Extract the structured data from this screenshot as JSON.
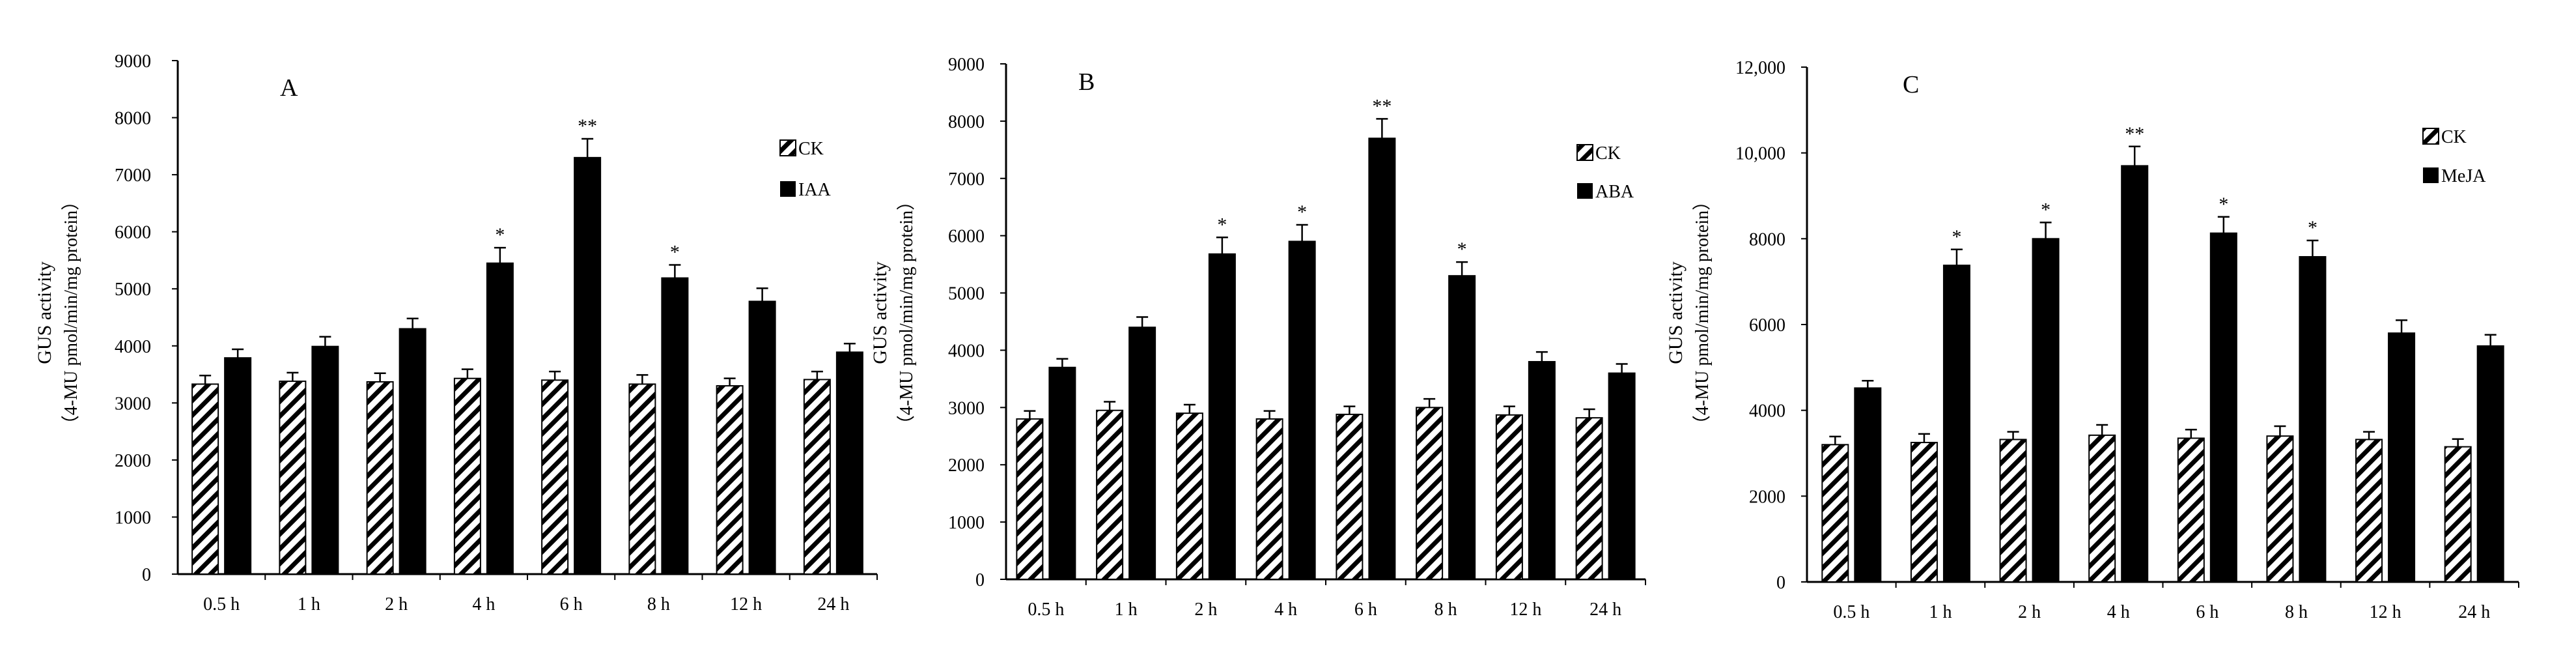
{
  "figure": {
    "colors": {
      "ck_fill": "hatch",
      "treatment_fill": "#000000",
      "axis": "#000000",
      "background": "#ffffff"
    }
  },
  "chart_data": [
    {
      "type": "bar",
      "panel": "A",
      "ylabel": [
        "GUS activity",
        "（4-MU pmol/min/mg protein）"
      ],
      "ylim": [
        0,
        9000
      ],
      "yticks": [
        0,
        1000,
        2000,
        3000,
        4000,
        5000,
        6000,
        7000,
        8000,
        9000
      ],
      "ytick_labels": [
        "0",
        "1000",
        "2000",
        "3000",
        "4000",
        "5000",
        "6000",
        "7000",
        "8000",
        "9000"
      ],
      "categories": [
        "0.5 h",
        "1 h",
        "2 h",
        "4 h",
        "6 h",
        "8 h",
        "12 h",
        "24 h"
      ],
      "series": [
        {
          "name": "CK",
          "style": "hatch",
          "values": [
            3330,
            3380,
            3370,
            3430,
            3400,
            3330,
            3300,
            3410
          ],
          "errors": [
            150,
            150,
            150,
            160,
            150,
            160,
            130,
            140
          ]
        },
        {
          "name": "IAA",
          "style": "solid",
          "values": [
            3790,
            3990,
            4300,
            5450,
            7300,
            5190,
            4780,
            3890
          ],
          "errors": [
            150,
            170,
            180,
            270,
            330,
            230,
            230,
            150
          ]
        }
      ],
      "significance": [
        "",
        "",
        "",
        "*",
        "**",
        "*",
        "",
        ""
      ],
      "legend": "top-right",
      "grid": false
    },
    {
      "type": "bar",
      "panel": "B",
      "ylabel": [
        "GUS activity",
        "（4-MU pmol/min/mg protein）"
      ],
      "ylim": [
        0,
        9000
      ],
      "yticks": [
        0,
        1000,
        2000,
        3000,
        4000,
        5000,
        6000,
        7000,
        8000,
        9000
      ],
      "ytick_labels": [
        "0",
        "1000",
        "2000",
        "3000",
        "4000",
        "5000",
        "6000",
        "7000",
        "8000",
        "9000"
      ],
      "categories": [
        "0.5 h",
        "1 h",
        "2 h",
        "4 h",
        "6 h",
        "8 h",
        "12 h",
        "24 h"
      ],
      "series": [
        {
          "name": "CK",
          "style": "hatch",
          "values": [
            2800,
            2950,
            2900,
            2800,
            2880,
            3000,
            2870,
            2820
          ],
          "errors": [
            140,
            150,
            150,
            140,
            140,
            150,
            150,
            150
          ]
        },
        {
          "name": "ABA",
          "style": "solid",
          "values": [
            3700,
            4400,
            5680,
            5900,
            7700,
            5300,
            3800,
            3600
          ],
          "errors": [
            150,
            180,
            290,
            290,
            340,
            240,
            170,
            160
          ]
        }
      ],
      "significance": [
        "",
        "",
        "*",
        "*",
        "**",
        "*",
        "",
        ""
      ],
      "legend": "top-right",
      "grid": false
    },
    {
      "type": "bar",
      "panel": "C",
      "ylabel": [
        "GUS activity",
        "（4-MU pmol/min/mg protein）"
      ],
      "ylim": [
        0,
        12000
      ],
      "yticks": [
        0,
        2000,
        4000,
        6000,
        8000,
        10000,
        12000
      ],
      "ytick_labels": [
        "0",
        "2000",
        "4000",
        "6000",
        "8000",
        "10,000",
        "12,000"
      ],
      "categories": [
        "0.5 h",
        "1 h",
        "2 h",
        "4 h",
        "6 h",
        "8 h",
        "12 h",
        "24 h"
      ],
      "series": [
        {
          "name": "CK",
          "style": "hatch",
          "values": [
            3200,
            3250,
            3320,
            3420,
            3350,
            3400,
            3320,
            3150
          ],
          "errors": [
            190,
            200,
            180,
            240,
            200,
            230,
            180,
            180
          ]
        },
        {
          "name": "MeJA",
          "style": "solid",
          "values": [
            4520,
            7380,
            8000,
            9700,
            8130,
            7580,
            5800,
            5500
          ],
          "errors": [
            170,
            370,
            380,
            450,
            380,
            380,
            300,
            260
          ]
        }
      ],
      "significance": [
        "",
        "*",
        "*",
        "**",
        "*",
        "*",
        "",
        ""
      ],
      "legend": "top-right",
      "grid": false
    }
  ]
}
